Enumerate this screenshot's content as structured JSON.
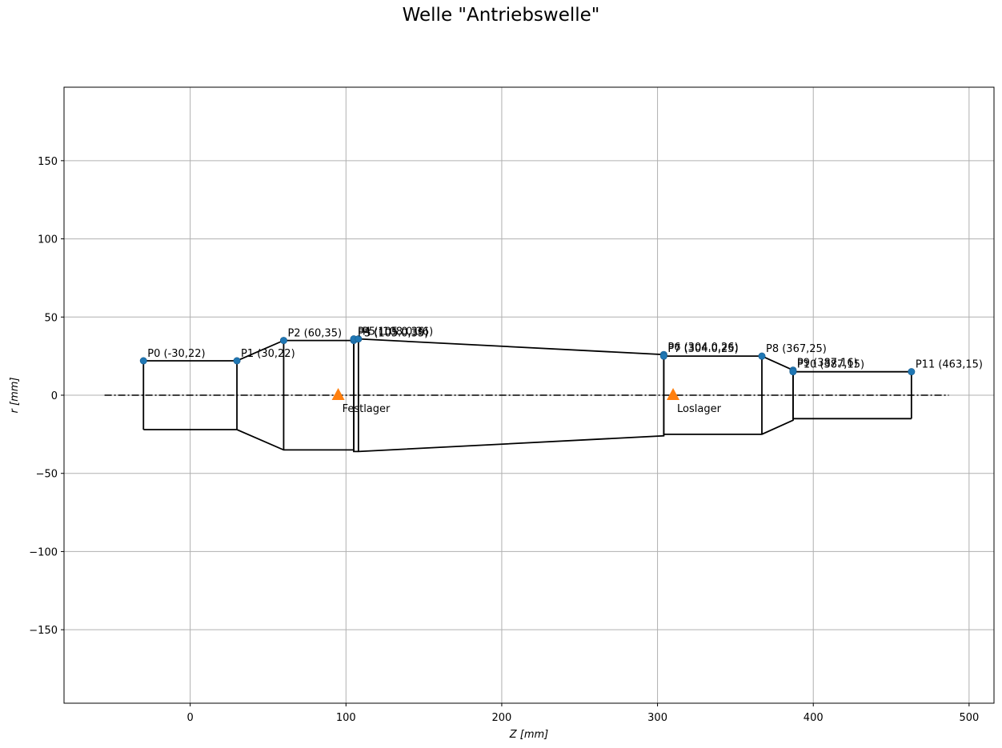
{
  "chart_data": {
    "type": "scatter",
    "title": "Welle \"Antriebswelle\"",
    "xlabel": "Z [mm]",
    "ylabel": "r [mm]",
    "xlim": [
      -81,
      516
    ],
    "ylim": [
      -197,
      197
    ],
    "x_ticks": [
      0,
      100,
      200,
      300,
      400,
      500
    ],
    "y_ticks": [
      -150,
      -100,
      -50,
      0,
      50,
      100,
      150
    ],
    "y_tick_labels": [
      "−150",
      "−100",
      "−50",
      "0",
      "50",
      "100",
      "150"
    ],
    "grid": true,
    "centerline": {
      "x_start": -55,
      "x_end": 487,
      "y": 0
    },
    "points": [
      {
        "label": "P0 (-30,22)",
        "x": -30,
        "y": 22
      },
      {
        "label": "P1 (30,22)",
        "x": 30,
        "y": 22
      },
      {
        "label": "P2 (60,35)",
        "x": 60,
        "y": 35
      },
      {
        "label": "P3 (105.0,35)",
        "x": 105,
        "y": 35
      },
      {
        "label": "P4 (105.0,36)",
        "x": 105,
        "y": 36
      },
      {
        "label": "P5 (108.0,36)",
        "x": 108,
        "y": 36
      },
      {
        "label": "P6 (304.0,26)",
        "x": 304,
        "y": 26
      },
      {
        "label": "P7 (304.0,25)",
        "x": 304,
        "y": 25
      },
      {
        "label": "P8 (367,25)",
        "x": 367,
        "y": 25
      },
      {
        "label": "P9 (387,16)",
        "x": 387,
        "y": 16
      },
      {
        "label": "P10 (387,15)",
        "x": 387,
        "y": 15
      },
      {
        "label": "P11 (463,15)",
        "x": 463,
        "y": 15
      }
    ],
    "bearings": [
      {
        "label": "Festlager",
        "x": 95,
        "y": 0
      },
      {
        "label": "Loslager",
        "x": 310,
        "y": 0
      }
    ],
    "colors": {
      "points": "#1f77b4",
      "bearings": "#ff7f0e",
      "outline": "#000000",
      "grid": "#b0b0b0"
    }
  }
}
